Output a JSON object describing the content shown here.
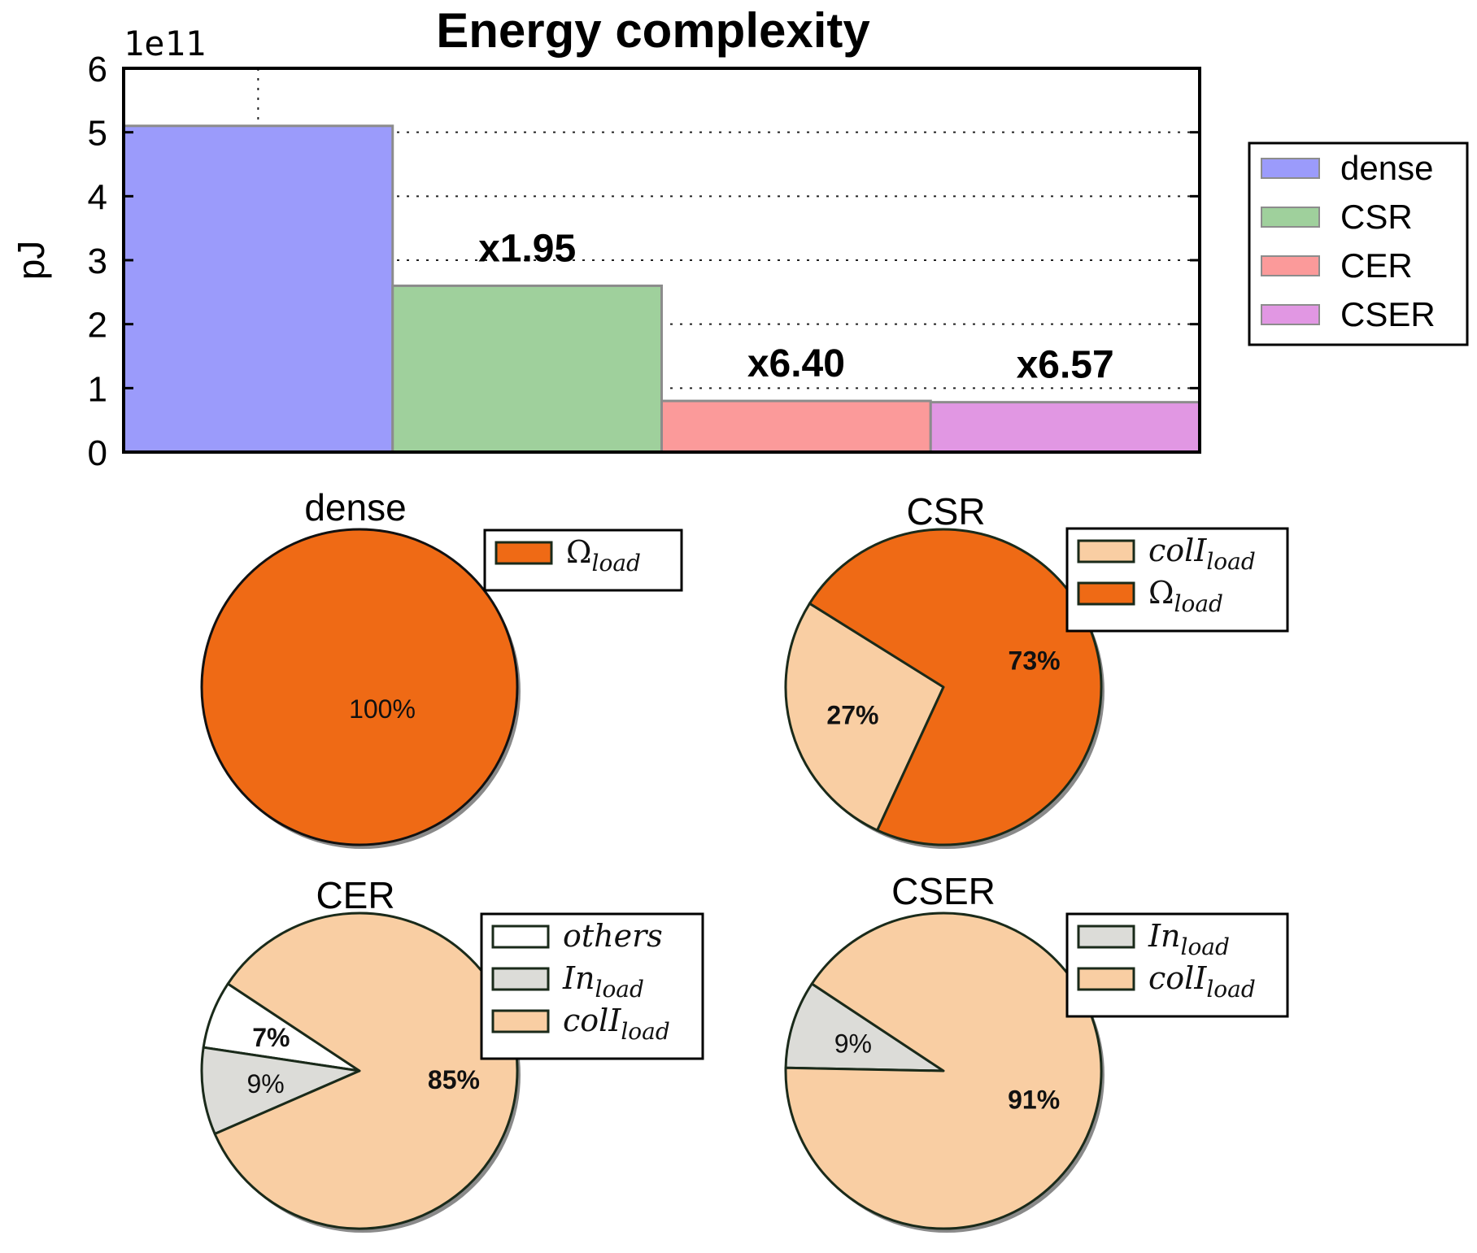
{
  "chart_data": [
    {
      "type": "bar",
      "title": "Energy complexity",
      "ylabel": "pJ",
      "offset_label": "1e11",
      "ylim": [
        0,
        6
      ],
      "yticks": [
        "0",
        "1",
        "2",
        "3",
        "4",
        "5",
        "6"
      ],
      "grid": true,
      "legend_position": "right",
      "categories": [
        "dense",
        "CSR",
        "CER",
        "CSER"
      ],
      "values": [
        5.1,
        2.6,
        0.8,
        0.78
      ],
      "colors": [
        "#9b9bfb",
        "#9fd09c",
        "#fb9a9a",
        "#e197e3"
      ],
      "annotations": [
        "",
        "x1.95",
        "x6.40",
        "x6.57"
      ],
      "legend": [
        "dense",
        "CSR",
        "CER",
        "CSER"
      ]
    },
    {
      "type": "pie",
      "title": "dense",
      "slices": [
        {
          "label": "Ω",
          "sub": "load",
          "value": 100,
          "pct_label": "100%",
          "color": "#ef6a15"
        }
      ]
    },
    {
      "type": "pie",
      "title": "CSR",
      "slices": [
        {
          "label": "colI",
          "sub": "load",
          "value": 27,
          "pct_label": "27%",
          "color": "#f9cea3"
        },
        {
          "label": "Ω",
          "sub": "load",
          "value": 73,
          "pct_label": "73%",
          "color": "#ef6a15"
        }
      ]
    },
    {
      "type": "pie",
      "title": "CER",
      "slices": [
        {
          "label": "others",
          "sub": "",
          "value": 7,
          "pct_label": "7%",
          "color": "#ffffff"
        },
        {
          "label": "In",
          "sub": "load",
          "value": 9,
          "pct_label": "9%",
          "color": "#dcdcd8"
        },
        {
          "label": "colI",
          "sub": "load",
          "value": 85,
          "pct_label": "85%",
          "color": "#f9cea3"
        }
      ]
    },
    {
      "type": "pie",
      "title": "CSER",
      "slices": [
        {
          "label": "In",
          "sub": "load",
          "value": 9,
          "pct_label": "9%",
          "color": "#dcdcd8"
        },
        {
          "label": "colI",
          "sub": "load",
          "value": 91,
          "pct_label": "91%",
          "color": "#f9cea3"
        }
      ]
    }
  ]
}
